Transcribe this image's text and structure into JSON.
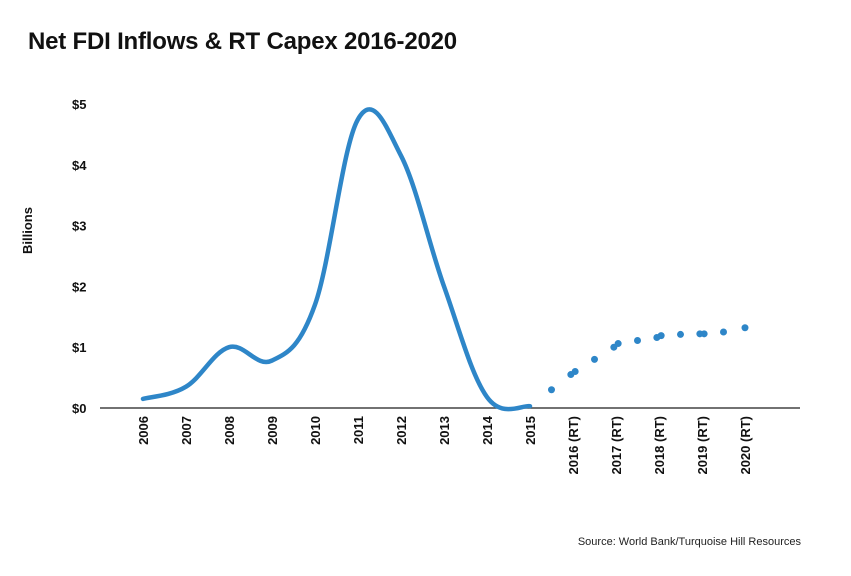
{
  "title": "Net FDI Inflows & RT Capex 2016-2020",
  "source": "Source: World Bank/Turquoise Hill Resources",
  "colors": {
    "series": "#2E86C8",
    "axis": "#444444"
  },
  "chart_data": {
    "type": "line",
    "title": "Net FDI Inflows & RT Capex 2016-2020",
    "ylabel": "Billions",
    "xlabel": "",
    "ylim": [
      0,
      5
    ],
    "yticks": [
      "$0",
      "$1",
      "$2",
      "$3",
      "$4",
      "$5"
    ],
    "categories": [
      "2006",
      "2007",
      "2008",
      "2009",
      "2010",
      "2011",
      "2012",
      "2013",
      "2014",
      "2015",
      "2016 (RT)",
      "2017 (RT)",
      "2018 (RT)",
      "2019 (RT)",
      "2020 (RT)"
    ],
    "grid": false,
    "legend": "none",
    "series": [
      {
        "style": "solid-line",
        "points": [
          {
            "x": 0,
            "y": 0.15
          },
          {
            "x": 1,
            "y": 0.35
          },
          {
            "x": 2,
            "y": 1.0
          },
          {
            "x": 3,
            "y": 0.78
          },
          {
            "x": 4,
            "y": 1.7
          },
          {
            "x": 5,
            "y": 4.75
          },
          {
            "x": 6,
            "y": 4.15
          },
          {
            "x": 7,
            "y": 2.0
          },
          {
            "x": 8,
            "y": 0.18
          },
          {
            "x": 9,
            "y": 0.03
          }
        ]
      },
      {
        "style": "dots",
        "points": [
          {
            "x": 9.5,
            "y": 0.3
          },
          {
            "x": 9.95,
            "y": 0.55
          },
          {
            "x": 10.05,
            "y": 0.6
          },
          {
            "x": 10.5,
            "y": 0.8
          },
          {
            "x": 10.95,
            "y": 1.0
          },
          {
            "x": 11.05,
            "y": 1.06
          },
          {
            "x": 11.5,
            "y": 1.11
          },
          {
            "x": 11.95,
            "y": 1.16
          },
          {
            "x": 12.05,
            "y": 1.19
          },
          {
            "x": 12.5,
            "y": 1.21
          },
          {
            "x": 12.95,
            "y": 1.22
          },
          {
            "x": 13.05,
            "y": 1.22
          },
          {
            "x": 13.5,
            "y": 1.25
          },
          {
            "x": 14.0,
            "y": 1.32
          }
        ]
      }
    ]
  }
}
